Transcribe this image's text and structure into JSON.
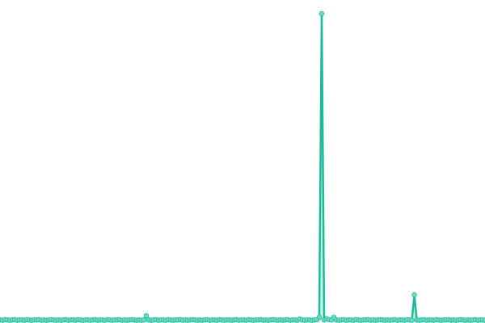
{
  "chart_data": {
    "type": "line",
    "title": "",
    "xlabel": "",
    "ylabel": "",
    "grid": false,
    "legend": "none",
    "ylim": [
      0,
      100
    ],
    "line_color": "#1abc9c",
    "marker_fill": "#6fdcc0",
    "area_fill": "#a8ecd9",
    "series": [
      {
        "values": [
          0.2,
          0.1,
          0.3,
          0.2,
          0.1,
          0.2,
          0.3,
          0.1,
          0.2,
          0.2,
          0.1,
          0.3,
          0.2,
          0.1,
          0.2,
          0.2,
          0.3,
          0.1,
          0.2,
          0.1,
          0.2,
          0.3,
          0.2,
          0.1,
          0.2,
          0.1,
          0.2,
          0.3,
          0.1,
          0.2,
          0.2,
          0.1,
          0.3,
          0.2,
          0.1,
          0.2,
          0.2,
          0.1,
          0.2,
          0.3,
          0.1,
          0.2,
          0.2,
          0.1,
          0.3,
          0.2,
          0.1,
          0.2,
          0.2,
          0.3,
          0.1,
          0.2,
          0.1,
          0.2,
          0.3,
          0.2,
          0.1,
          0.2,
          0.1,
          0.2,
          1.6,
          0.2,
          0.1,
          0.2,
          0.3,
          0.1,
          0.2,
          0.2,
          0.1,
          0.3,
          0.2,
          0.1,
          0.2,
          0.2,
          0.3,
          0.1,
          0.2,
          0.1,
          0.2,
          0.3,
          0.2,
          0.1,
          0.2,
          0.1,
          0.2,
          0.3,
          0.1,
          0.2,
          0.2,
          0.1,
          0.3,
          0.2,
          0.1,
          0.2,
          0.2,
          0.1,
          0.2,
          0.3,
          0.1,
          0.2,
          0.2,
          0.1,
          0.3,
          0.2,
          0.1,
          0.2,
          0.2,
          0.3,
          0.1,
          0.2,
          0.1,
          0.2,
          0.3,
          0.2,
          0.1,
          0.2,
          0.1,
          0.2,
          0.3,
          0.1,
          0.2,
          0.2,
          0.1,
          0.5,
          0.2,
          0.1,
          0.2,
          0.2,
          0.1,
          0.2,
          0.3,
          1.1,
          100,
          0.2,
          0.6,
          0.3,
          0.2,
          1.1,
          0.2,
          0.1,
          0.2,
          0.3,
          0.1,
          0.2,
          0.2,
          0.1,
          0.3,
          0.2,
          0.1,
          0.2,
          0.2,
          0.3,
          0.1,
          0.2,
          0.1,
          0.2,
          0.3,
          0.2,
          0.1,
          0.2,
          0.1,
          0.2,
          0.3,
          0.1,
          0.2,
          0.2,
          0.1,
          0.3,
          0.2,
          0.1,
          8.4,
          0.2,
          0.1,
          0.2,
          0.3,
          0.1,
          0.2,
          0.2,
          0.1,
          0.3,
          0.2,
          0.1,
          0.2,
          0.2,
          0.3,
          0.1,
          0.2,
          0.1,
          0.2,
          0.3,
          0.2,
          0.1,
          0.2,
          0.1,
          0.2,
          0.3,
          0.1,
          0.2,
          0.2,
          0.1
        ]
      }
    ]
  }
}
